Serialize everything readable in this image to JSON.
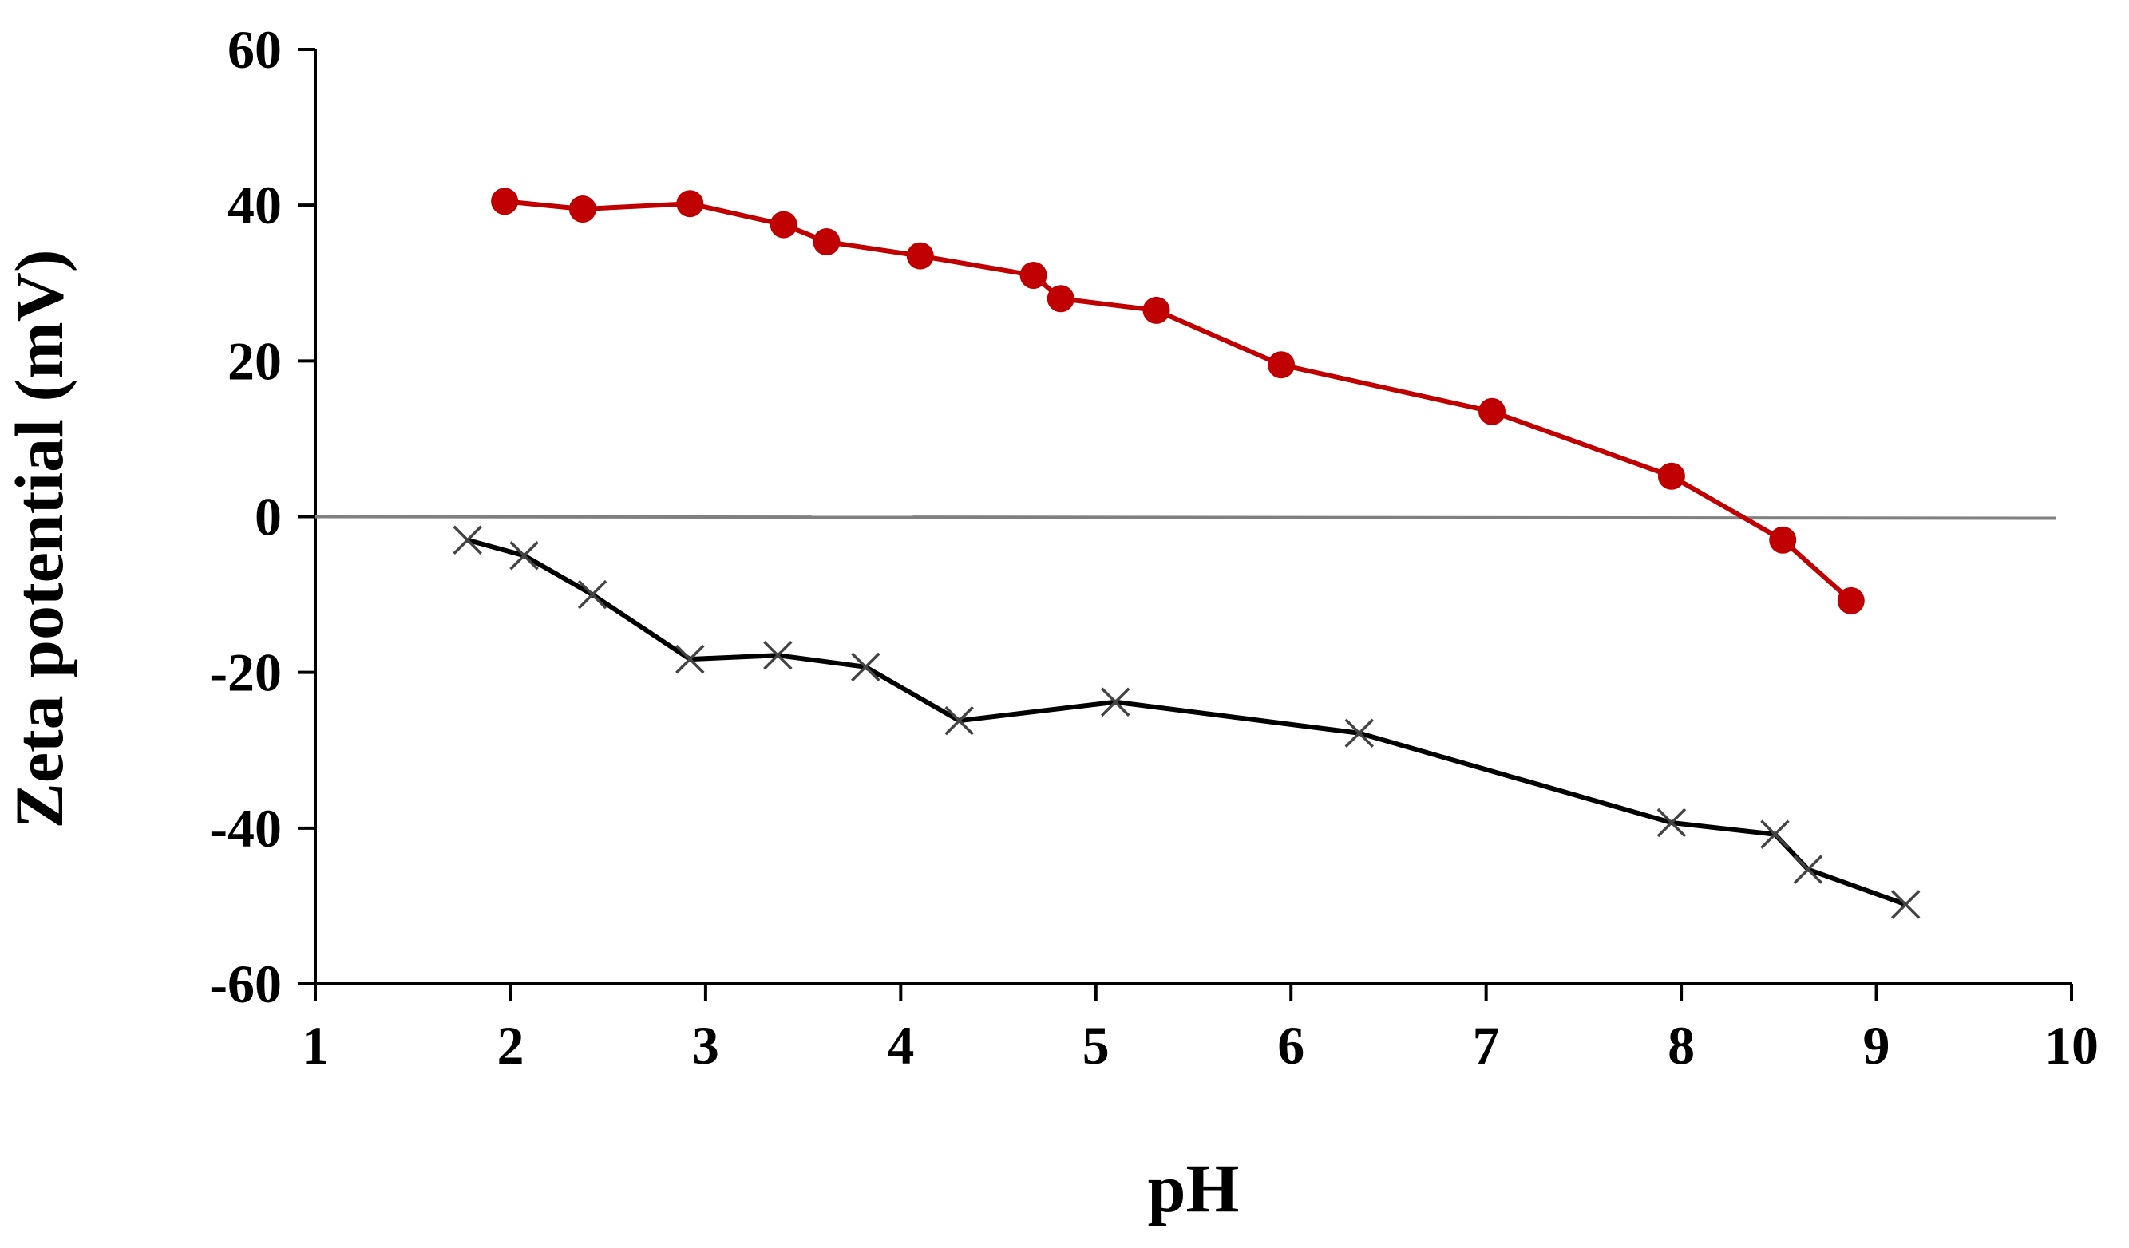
{
  "chart_data": {
    "type": "line",
    "title": "",
    "xlabel": "pH",
    "ylabel": "Zeta potential (mV)",
    "xlim": [
      1,
      10
    ],
    "ylim": [
      -60,
      60
    ],
    "x_ticks": [
      1,
      2,
      3,
      4,
      5,
      6,
      7,
      8,
      9,
      10
    ],
    "y_ticks": [
      60,
      40,
      20,
      0,
      -20,
      -40,
      -60
    ],
    "grid": false,
    "legend": "none",
    "reference_line": {
      "y": 0,
      "color": "#808080"
    },
    "series": [
      {
        "color": "#c00000",
        "marker": "circle",
        "x": [
          1.97,
          2.37,
          2.92,
          3.4,
          3.62,
          4.1,
          4.68,
          4.82,
          5.31,
          5.95,
          7.03,
          7.95,
          8.52,
          8.87
        ],
        "y": [
          40.5,
          39.5,
          40.2,
          37.5,
          35.3,
          33.5,
          31.0,
          28.0,
          26.5,
          19.5,
          13.5,
          5.2,
          -3.0,
          -10.8
        ]
      },
      {
        "color": "#000000",
        "marker": "x",
        "x": [
          1.78,
          2.07,
          2.42,
          2.92,
          3.37,
          3.82,
          4.3,
          5.1,
          6.35,
          7.95,
          8.48,
          8.65,
          9.15
        ],
        "y": [
          -3.0,
          -5.0,
          -10.0,
          -18.3,
          -17.8,
          -19.3,
          -26.2,
          -23.8,
          -27.8,
          -39.3,
          -40.8,
          -45.3,
          -49.8
        ]
      }
    ]
  }
}
